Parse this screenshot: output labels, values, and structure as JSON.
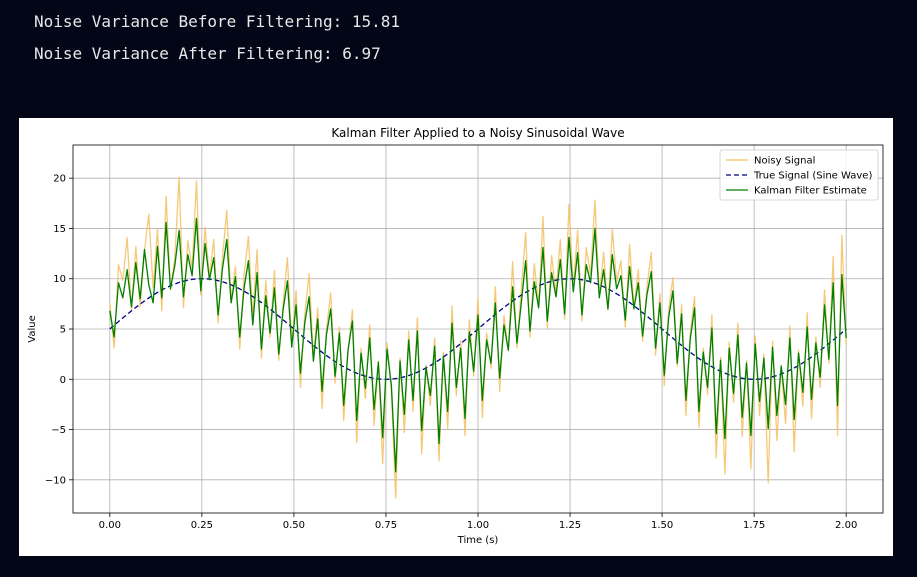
{
  "console": {
    "line_before": "Noise Variance Before Filtering: 15.81",
    "line_after": "Noise Variance After Filtering: 6.97"
  },
  "chart_data": {
    "type": "line",
    "title": "Kalman Filter Applied to a Noisy Sinusoidal Wave",
    "xlabel": "Time (s)",
    "ylabel": "Value",
    "xlim": [
      -0.1,
      2.1
    ],
    "ylim": [
      -13.3,
      23.3
    ],
    "xticks": [
      "0.00",
      "0.25",
      "0.50",
      "0.75",
      "1.00",
      "1.25",
      "1.50",
      "1.75",
      "2.00"
    ],
    "yticks": [
      "20",
      "15",
      "10",
      "5",
      "0",
      "−5",
      "−10"
    ],
    "grid": true,
    "legend_position": "upper-right",
    "legend": [
      "Noisy Signal",
      "True Signal (Sine Wave)",
      "Kalman Filter Estimate"
    ],
    "series": [
      {
        "name": "Noisy Signal",
        "color": "#f5c060",
        "style": "solid",
        "x_start": 0,
        "x_end": 2,
        "values": [
          7.6,
          3.1,
          11.4,
          9.8,
          14.1,
          6.9,
          13.2,
          7.2,
          12.8,
          16.4,
          9.1,
          14.9,
          6.8,
          18.2,
          8.9,
          12.1,
          20.1,
          7.1,
          13.8,
          11.0,
          19.7,
          8.4,
          15.1,
          10.2,
          13.9,
          5.6,
          12.1,
          16.8,
          7.9,
          11.2,
          3.0,
          10.4,
          14.2,
          6.1,
          12.9,
          2.1,
          9.8,
          4.2,
          10.8,
          1.9,
          7.5,
          12.1,
          3.4,
          8.8,
          -0.8,
          6.4,
          10.5,
          2.1,
          7.1,
          -2.9,
          4.9,
          8.6,
          -0.4,
          5.2,
          -4.1,
          2.8,
          6.9,
          -6.3,
          3.1,
          -1.9,
          5.4,
          -4.6,
          1.8,
          -8.4,
          3.6,
          -1.1,
          -11.8,
          2.1,
          -5.3,
          4.8,
          -3.2,
          6.1,
          -7.4,
          1.4,
          -2.6,
          4.1,
          -8.1,
          2.7,
          -4.9,
          7.3,
          -1.6,
          3.8,
          -5.6,
          5.9,
          0.3,
          8.1,
          -3.8,
          4.6,
          1.1,
          9.2,
          -1.2,
          6.3,
          2.8,
          11.7,
          3.1,
          8.9,
          14.6,
          4.2,
          11.5,
          7.3,
          16.2,
          5.1,
          12.3,
          8.6,
          13.9,
          6.0,
          17.4,
          9.2,
          14.8,
          5.8,
          13.1,
          10.4,
          17.8,
          8.3,
          12.6,
          6.9,
          14.9,
          9.7,
          11.8,
          5.2,
          13.4,
          7.1,
          10.9,
          3.8,
          9.2,
          12.6,
          2.4,
          8.5,
          -0.6,
          6.9,
          10.1,
          1.3,
          7.4,
          -3.6,
          4.6,
          8.2,
          -4.8,
          3.1,
          -1.5,
          6.4,
          -7.8,
          2.2,
          -9.4,
          3.7,
          -2.3,
          5.6,
          -5.7,
          1.9,
          -8.9,
          4.3,
          -3.6,
          2.5,
          -10.3,
          3.8,
          -6.1,
          1.4,
          -4.4,
          5.3,
          -7.2,
          2.9,
          -2.7,
          6.6,
          -3.9,
          4.2,
          -0.8,
          8.9,
          1.6,
          12.2,
          -5.6,
          14.3,
          3.4
        ]
      },
      {
        "name": "True Signal (Sine Wave)",
        "color": "#00008b",
        "style": "dashed",
        "function": "5 + 5*sin(2*pi*t)",
        "x_start": 0,
        "x_end": 2
      },
      {
        "name": "Kalman Filter Estimate",
        "color": "#008000",
        "style": "solid",
        "x_start": 0,
        "x_end": 2,
        "values": [
          6.8,
          4.2,
          9.6,
          8.1,
          10.9,
          7.2,
          11.6,
          8.0,
          12.9,
          9.4,
          7.6,
          13.2,
          8.1,
          15.6,
          9.0,
          11.3,
          14.8,
          8.2,
          12.4,
          10.3,
          16.0,
          8.8,
          13.5,
          9.9,
          12.1,
          6.4,
          11.0,
          13.9,
          7.6,
          10.2,
          4.2,
          9.1,
          11.8,
          5.4,
          10.6,
          3.0,
          8.3,
          4.6,
          9.1,
          2.5,
          6.9,
          9.8,
          3.2,
          7.4,
          0.6,
          5.6,
          8.2,
          1.8,
          6.0,
          -1.2,
          4.4,
          7.0,
          0.3,
          4.6,
          -2.6,
          2.9,
          5.8,
          -4.1,
          2.6,
          -0.9,
          4.1,
          -3.0,
          1.7,
          -5.8,
          3.0,
          -0.6,
          -9.2,
          1.8,
          -3.5,
          3.9,
          -2.1,
          4.8,
          -5.1,
          1.2,
          -1.6,
          3.3,
          -6.4,
          2.3,
          -3.2,
          5.6,
          -0.8,
          3.1,
          -3.9,
          4.7,
          0.8,
          6.4,
          -2.1,
          3.9,
          1.6,
          7.6,
          0.1,
          5.4,
          2.9,
          9.2,
          3.6,
          7.6,
          11.8,
          4.8,
          9.7,
          7.1,
          13.1,
          5.8,
          10.6,
          8.2,
          11.9,
          6.5,
          14.1,
          8.7,
          12.6,
          6.4,
          11.4,
          9.6,
          15.0,
          8.1,
          10.9,
          7.0,
          12.4,
          9.0,
          10.3,
          5.9,
          11.2,
          7.0,
          9.6,
          4.3,
          8.4,
          10.7,
          3.1,
          7.6,
          0.4,
          6.1,
          8.8,
          1.6,
          6.5,
          -2.1,
          4.0,
          7.1,
          -3.2,
          2.7,
          -0.8,
          5.1,
          -5.4,
          1.9,
          -5.9,
          3.1,
          -1.4,
          4.4,
          -3.8,
          1.6,
          -5.6,
          3.5,
          -2.2,
          2.1,
          -4.9,
          3.2,
          -3.6,
          1.3,
          -2.5,
          4.1,
          -4.0,
          2.6,
          -1.3,
          5.2,
          -2.0,
          3.6,
          0.2,
          7.4,
          2.0,
          9.6,
          -2.6,
          10.4,
          4.1
        ]
      }
    ]
  }
}
